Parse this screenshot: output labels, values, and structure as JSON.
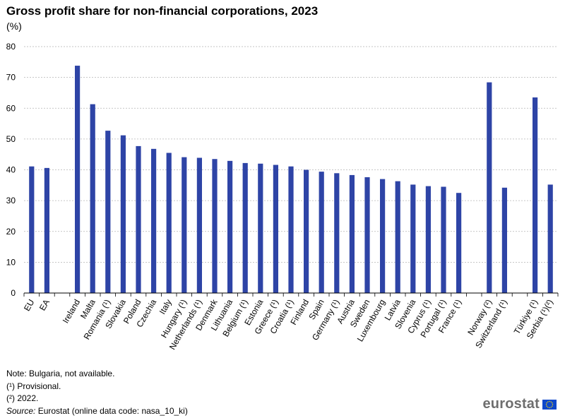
{
  "chart_data": {
    "type": "bar",
    "title": "Gross profit share for non-financial corporations, 2023",
    "subtitle": "(%)",
    "ylim": [
      0,
      80
    ],
    "yticks": [
      0,
      10,
      20,
      30,
      40,
      50,
      60,
      70,
      80
    ],
    "grid": true,
    "bar_color": "#2e44a6",
    "groups": [
      {
        "categories": [
          "EU",
          "EA"
        ],
        "values": [
          41.1,
          40.6
        ]
      },
      {
        "categories": [
          "Ireland",
          "Malta",
          "Romania (¹)",
          "Slovakia",
          "Poland",
          "Czechia",
          "Italy",
          "Hungary (¹)",
          "Netherlands (¹)",
          "Denmark",
          "Lithuania",
          "Belgium (¹)",
          "Estonia",
          "Greece (¹)",
          "Croatia (¹)",
          "Finland",
          "Spain",
          "Germany (¹)",
          "Austria",
          "Sweden",
          "Luxembourg",
          "Latvia",
          "Slovenia",
          "Cyprus (¹)",
          "Portugal (¹)",
          "France (¹)"
        ],
        "values": [
          73.8,
          61.3,
          52.7,
          51.2,
          47.7,
          46.8,
          45.5,
          44.1,
          43.9,
          43.5,
          42.9,
          42.2,
          42.0,
          41.6,
          41.1,
          40.0,
          39.4,
          38.9,
          38.3,
          37.6,
          37.0,
          36.3,
          35.2,
          34.7,
          34.5,
          32.5
        ]
      },
      {
        "categories": [
          "Norway (²)",
          "Switzerland (¹)"
        ],
        "values": [
          68.4,
          34.2
        ]
      },
      {
        "categories": [
          "Türkiye (¹)",
          "Serbia (¹)(²)"
        ],
        "values": [
          63.5,
          35.2
        ]
      }
    ]
  },
  "notes": {
    "line1": "Note: Bulgaria, not available.",
    "line2": "(¹) Provisional.",
    "line3": "(²) 2022.",
    "source_label": "Source:",
    "source_text": " Eurostat (online data code: nasa_10_ki)"
  },
  "logo": {
    "text": "eurostat",
    "flag_color": "#0e47cb",
    "star_color": "#ffdd00"
  }
}
